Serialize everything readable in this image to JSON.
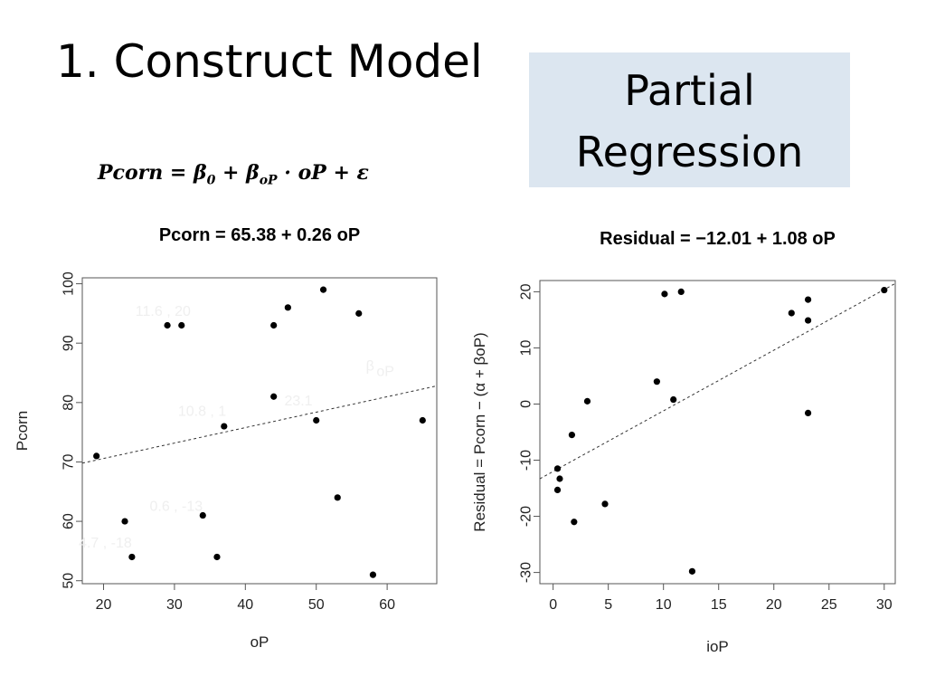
{
  "slide": {
    "title": "1. Construct Model",
    "tag_lines": [
      "Partial",
      "Regression"
    ],
    "equation": {
      "lhs": "Pcorn",
      "eq": " = ",
      "b0": "β",
      "b0_sub": "0",
      "plus1": " + ",
      "b1": "β",
      "b1_sub": "oP",
      "dot": " · ",
      "x": "oP",
      "plus2": " + ",
      "err": "ε"
    }
  },
  "chart_data": [
    {
      "type": "scatter",
      "title": "Pcorn = 65.38 + 0.26 oP",
      "xlabel": "oP",
      "ylabel": "Pcorn",
      "xlim": [
        17,
        67
      ],
      "ylim": [
        49.5,
        101
      ],
      "xticks": [
        20,
        30,
        40,
        50,
        60
      ],
      "yticks": [
        50,
        60,
        70,
        80,
        90,
        100
      ],
      "points": [
        [
          19,
          71
        ],
        [
          23,
          60
        ],
        [
          24,
          54
        ],
        [
          29,
          93
        ],
        [
          31,
          93
        ],
        [
          34,
          61
        ],
        [
          36,
          54
        ],
        [
          37,
          76
        ],
        [
          44,
          93
        ],
        [
          44,
          81
        ],
        [
          46,
          96
        ],
        [
          50,
          77
        ],
        [
          51,
          99
        ],
        [
          53,
          64
        ],
        [
          56,
          95
        ],
        [
          58,
          51
        ],
        [
          65,
          77
        ]
      ],
      "fit_line": {
        "intercept": 65.38,
        "slope": 0.26,
        "style": "dashed"
      },
      "faint_annotations": [
        {
          "text": "11.6 , 20",
          "x": 24.5,
          "y": 94.6
        },
        {
          "text": "10.8 , 1",
          "x": 30.5,
          "y": 77.8
        },
        {
          "text": "23.1",
          "x": 45.5,
          "y": 79.5
        },
        {
          "text": "0.6 , -13",
          "x": 26.5,
          "y": 61.8
        },
        {
          "text": "4.7 , -18",
          "x": 16.5,
          "y": 55.6
        },
        {
          "text": "β",
          "x": 57,
          "y": 85.4
        },
        {
          "text": "oP",
          "x": 58.5,
          "y": 84.5
        }
      ],
      "grid": false
    },
    {
      "type": "scatter",
      "title": "Residual = −12.01 + 1.08 oP",
      "xlabel": "ioP",
      "ylabel": "Residual = Pcorn − (α + βoP)",
      "xlim": [
        -1.2,
        31
      ],
      "ylim": [
        -32,
        22
      ],
      "xticks": [
        0,
        5,
        10,
        15,
        20,
        25,
        30
      ],
      "yticks": [
        -30,
        -20,
        -10,
        0,
        10,
        20
      ],
      "points": [
        [
          0.4,
          -11.5
        ],
        [
          0.4,
          -15.3
        ],
        [
          0.6,
          -13.3
        ],
        [
          1.7,
          -5.5
        ],
        [
          1.9,
          -21
        ],
        [
          3.1,
          0.5
        ],
        [
          4.7,
          -17.8
        ],
        [
          9.4,
          4
        ],
        [
          10.1,
          19.6
        ],
        [
          10.9,
          0.8
        ],
        [
          11.6,
          20
        ],
        [
          12.6,
          -29.8
        ],
        [
          21.6,
          16.2
        ],
        [
          23.1,
          18.6
        ],
        [
          23.1,
          14.9
        ],
        [
          23.1,
          -1.6
        ],
        [
          30,
          20.3
        ]
      ],
      "fit_line": {
        "intercept": -12.01,
        "slope": 1.08,
        "style": "dashed"
      },
      "grid": false
    }
  ]
}
